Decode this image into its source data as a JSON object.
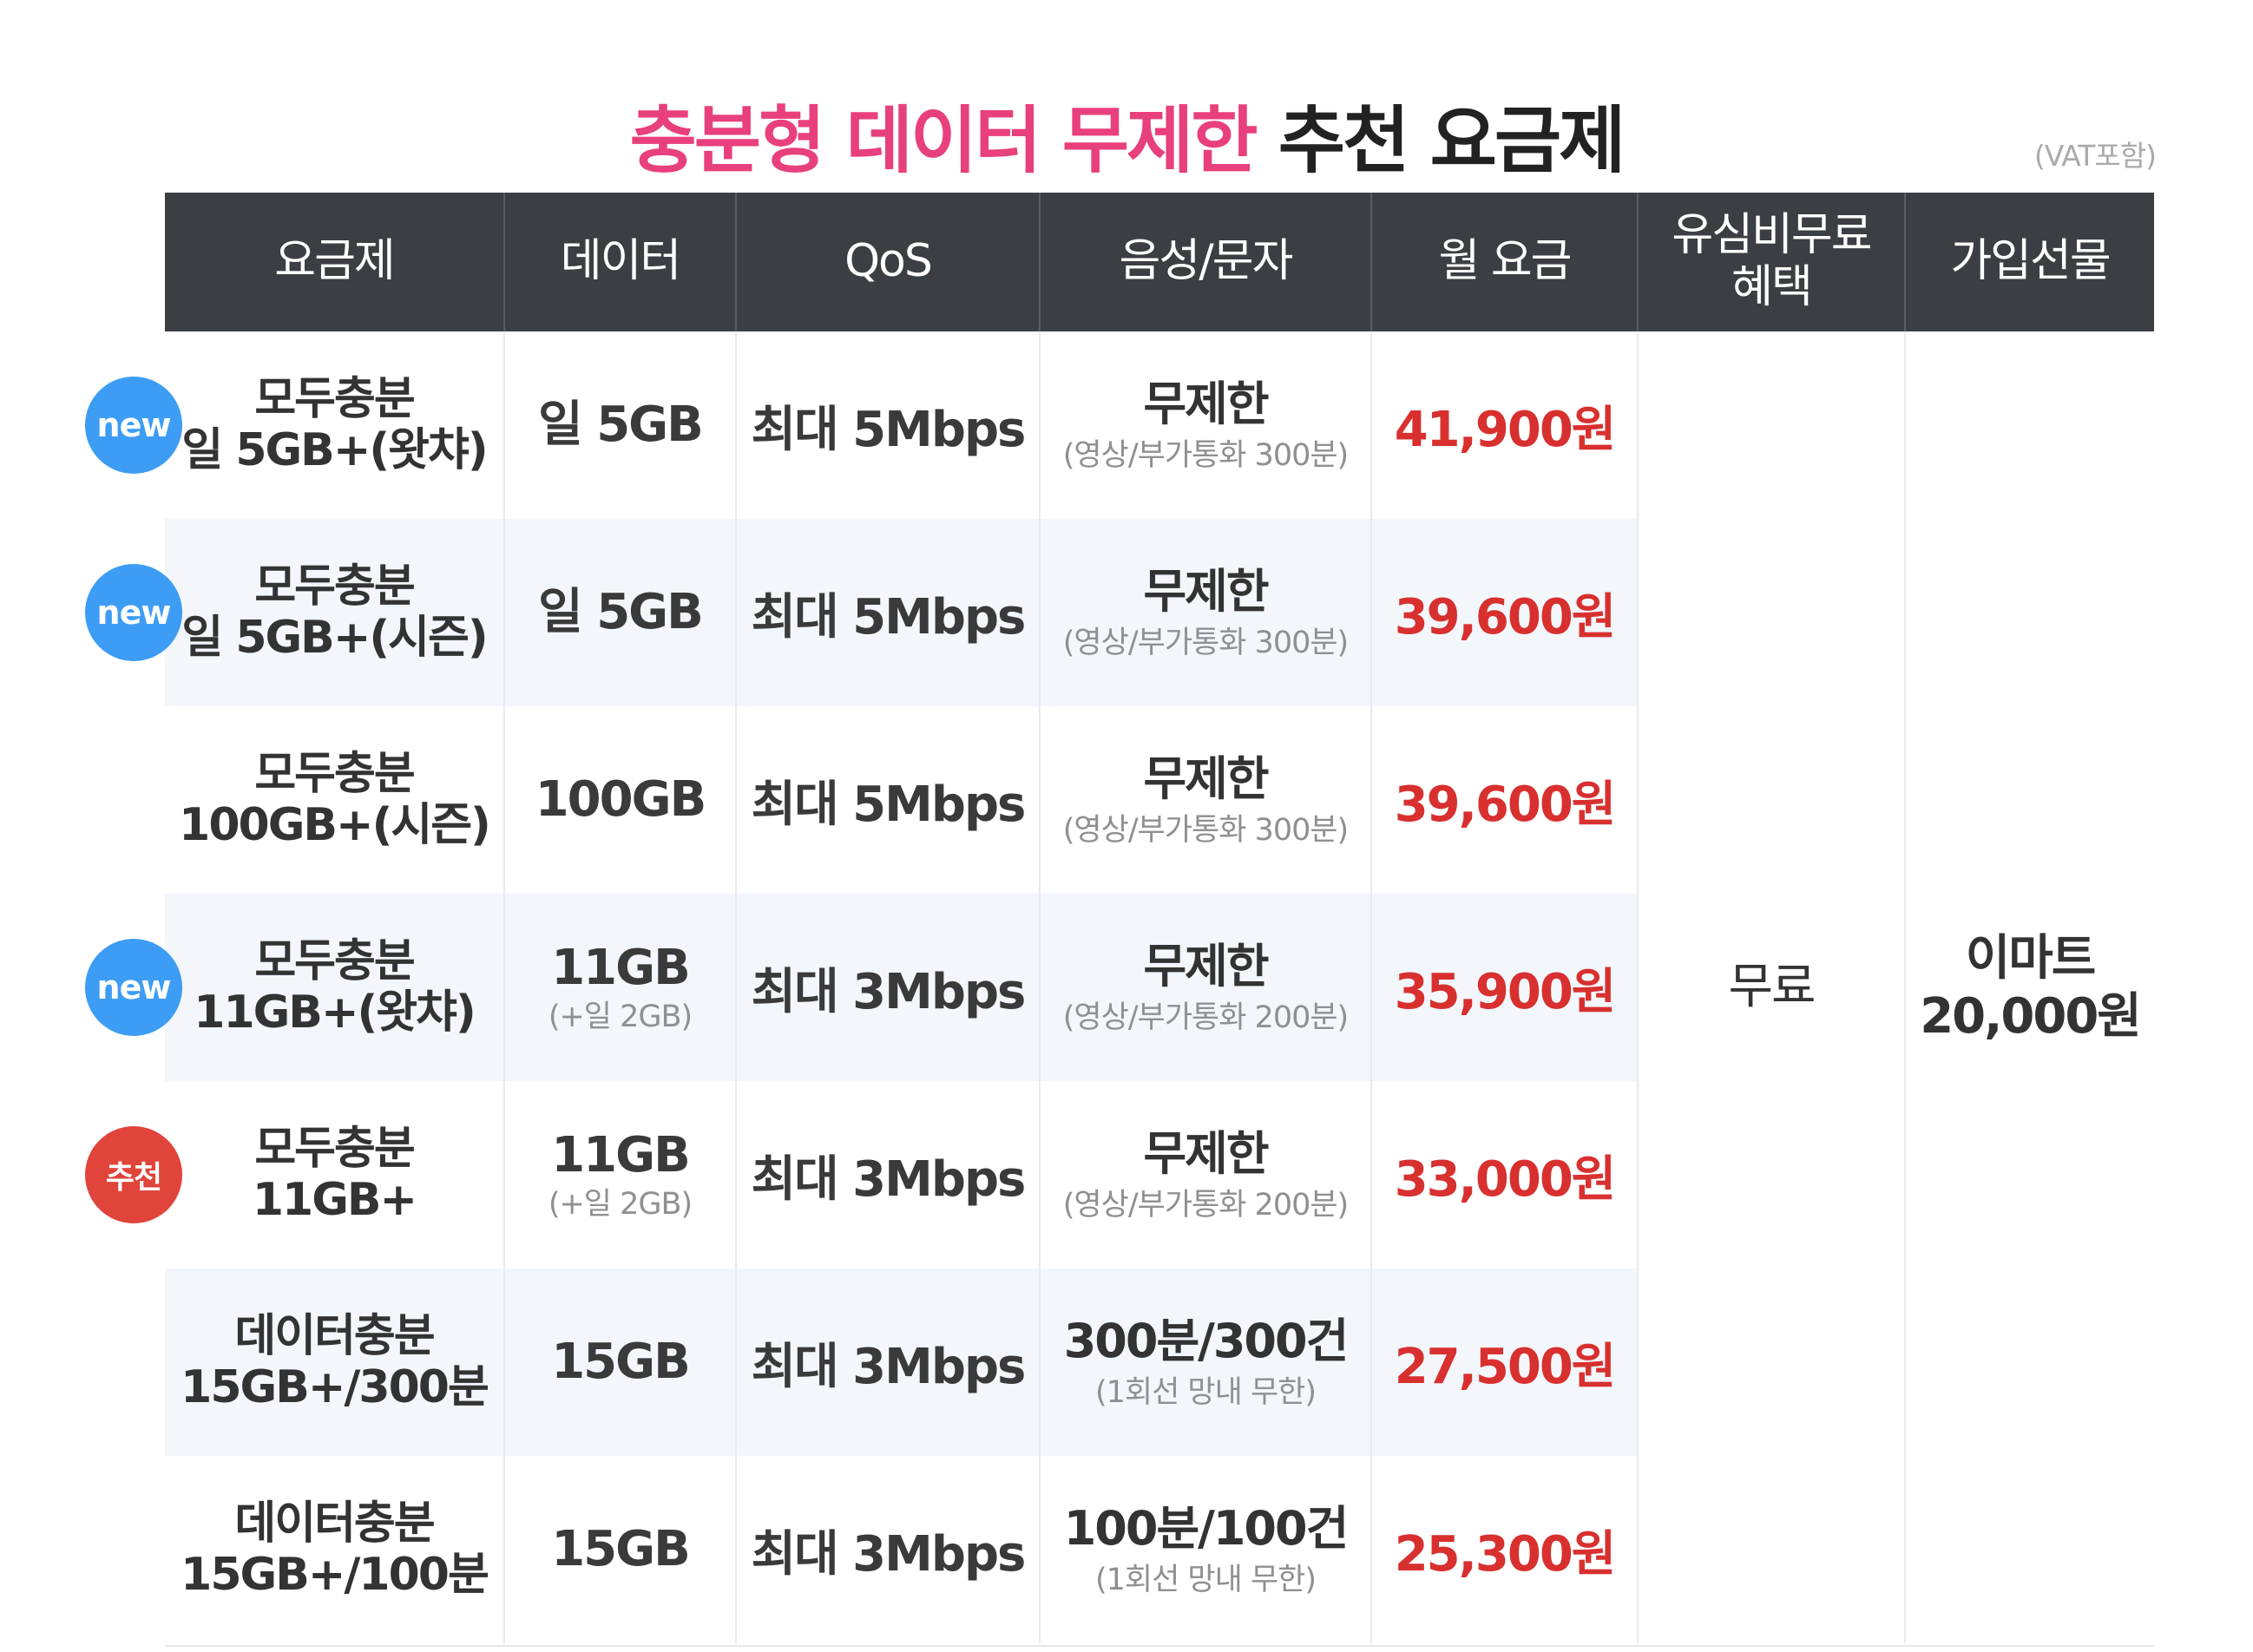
{
  "title": {
    "highlight": "충분형 데이터 무제한",
    "rest": "추천 요금제"
  },
  "vat_note": "(VAT포함)",
  "colors": {
    "header_bg": "#3b3e42",
    "title_pink": "#e8407c",
    "price_red": "#d8302f",
    "badge_new": "#3d9df5",
    "badge_recommend": "#e0443a",
    "alt_row_bg": "#f3f6fb"
  },
  "columns": {
    "plan": "요금제",
    "data": "데이터",
    "qos": "QoS",
    "voice": "음성/문자",
    "fee": "월 요금",
    "usim_line1": "유심비무료",
    "usim_line2": "혜택",
    "gift": "가입선물"
  },
  "usim_benefit": "무료",
  "gift": {
    "line1": "이마트",
    "line2": "20,000원"
  },
  "plans": [
    {
      "badge": "new",
      "name_line1": "모두충분",
      "name_line2": "일 5GB+(왓챠)",
      "data": "일 5GB",
      "data_sub": "",
      "qos": "최대 5Mbps",
      "voice": "무제한",
      "voice_sub": "(영상/부가통화 300분)",
      "fee": "41,900원"
    },
    {
      "badge": "new",
      "name_line1": "모두충분",
      "name_line2": "일 5GB+(시즌)",
      "data": "일 5GB",
      "data_sub": "",
      "qos": "최대 5Mbps",
      "voice": "무제한",
      "voice_sub": "(영상/부가통화 300분)",
      "fee": "39,600원"
    },
    {
      "badge": "",
      "name_line1": "모두충분",
      "name_line2": "100GB+(시즌)",
      "data": "100GB",
      "data_sub": "",
      "qos": "최대 5Mbps",
      "voice": "무제한",
      "voice_sub": "(영상/부가통화 300분)",
      "fee": "39,600원"
    },
    {
      "badge": "new",
      "name_line1": "모두충분",
      "name_line2": "11GB+(왓챠)",
      "data": "11GB",
      "data_sub": "(+일 2GB)",
      "qos": "최대 3Mbps",
      "voice": "무제한",
      "voice_sub": "(영상/부가통화 200분)",
      "fee": "35,900원"
    },
    {
      "badge": "추천",
      "name_line1": "모두충분",
      "name_line2": "11GB+",
      "data": "11GB",
      "data_sub": "(+일 2GB)",
      "qos": "최대 3Mbps",
      "voice": "무제한",
      "voice_sub": "(영상/부가통화 200분)",
      "fee": "33,000원"
    },
    {
      "badge": "",
      "name_line1": "데이터충분",
      "name_line2": "15GB+/300분",
      "data": "15GB",
      "data_sub": "",
      "qos": "최대 3Mbps",
      "voice": "300분/300건",
      "voice_sub": "(1회선 망내 무한)",
      "fee": "27,500원"
    },
    {
      "badge": "",
      "name_line1": "데이터충분",
      "name_line2": "15GB+/100분",
      "data": "15GB",
      "data_sub": "",
      "qos": "최대 3Mbps",
      "voice": "100분/100건",
      "voice_sub": "(1회선 망내 무한)",
      "fee": "25,300원"
    }
  ]
}
